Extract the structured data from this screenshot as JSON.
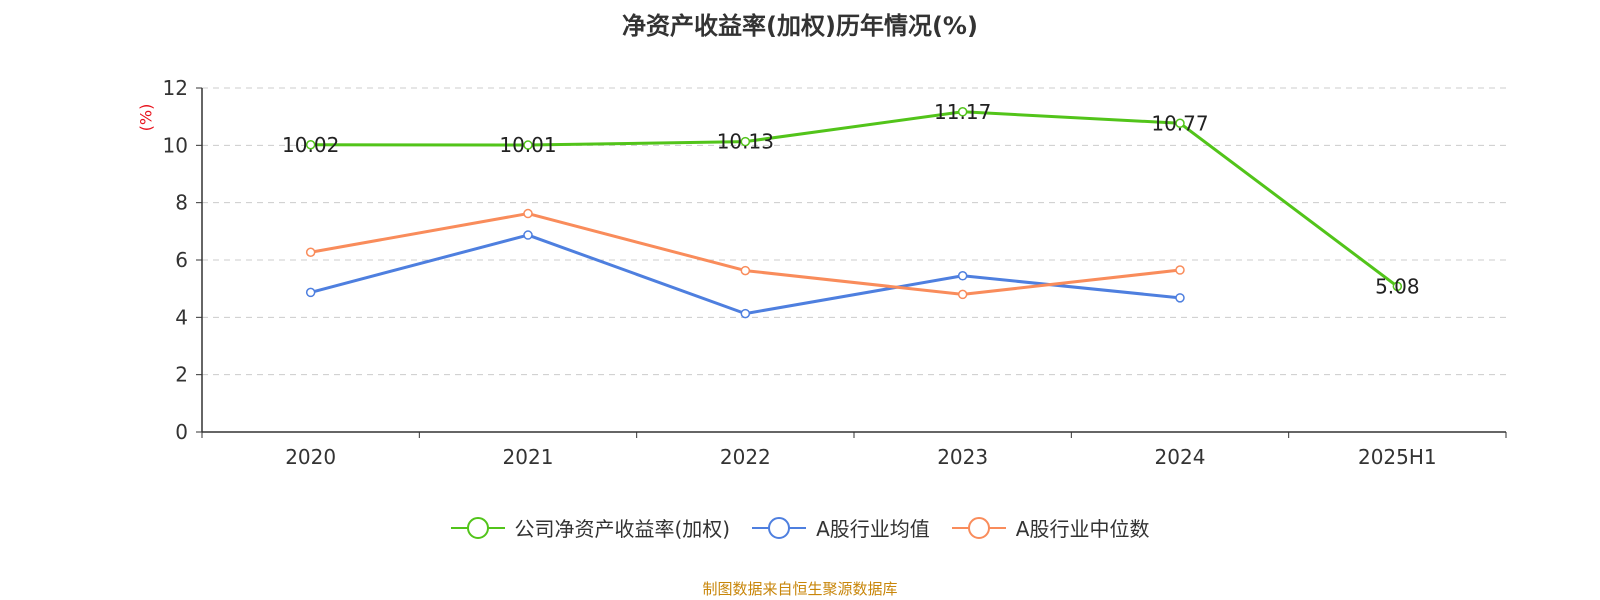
{
  "chart_data": {
    "type": "line",
    "title": "净资产收益率(加权)历年情况(%)",
    "ylabel": "(%)",
    "xlabel": "",
    "categories": [
      "2020",
      "2021",
      "2022",
      "2023",
      "2024",
      "2025H1"
    ],
    "ylim": [
      0,
      12
    ],
    "yticks": [
      "0",
      "2",
      "4",
      "6",
      "8",
      "10",
      "12"
    ],
    "grid": true,
    "legend_position": "bottom",
    "series": [
      {
        "name": "公司净资产收益率(加权)",
        "color": "#52c41a",
        "values": [
          10.02,
          10.01,
          10.13,
          11.17,
          10.77,
          5.08
        ],
        "labels": [
          "10.02",
          "10.01",
          "10.13",
          "11.17",
          "10.77",
          "5.08"
        ]
      },
      {
        "name": "A股行业均值",
        "color": "#4e7fdf",
        "values": [
          4.87,
          6.87,
          4.13,
          5.45,
          4.68,
          null
        ]
      },
      {
        "name": "A股行业中位数",
        "color": "#f98c5b",
        "values": [
          6.27,
          7.62,
          5.63,
          4.8,
          5.65,
          null
        ]
      }
    ]
  },
  "footer": {
    "source": "制图数据来自恒生聚源数据库"
  }
}
